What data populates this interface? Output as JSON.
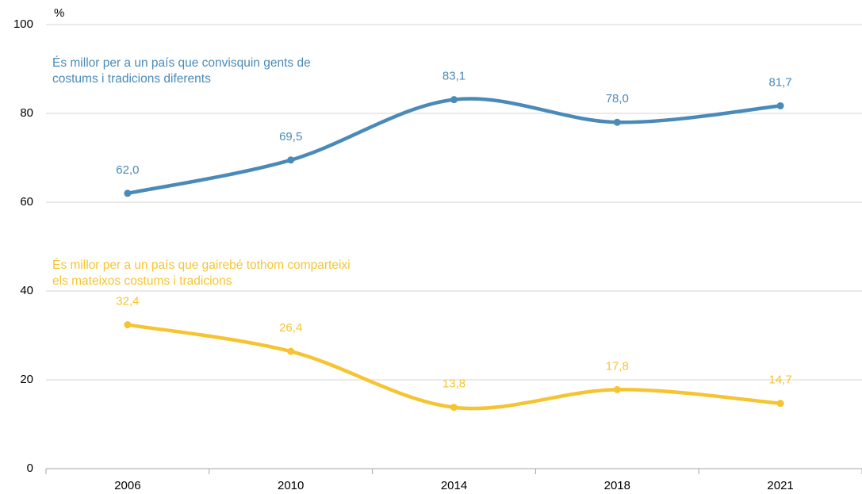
{
  "chart_data": {
    "type": "line",
    "ylabel": "%",
    "categories": [
      "2006",
      "2010",
      "2014",
      "2018",
      "2021"
    ],
    "series": [
      {
        "name": "És millor per a un país que convisquin gents de costums i tradicions diferents",
        "color": "#4a8ab9",
        "values": [
          62.0,
          69.5,
          83.1,
          78.0,
          81.7
        ],
        "value_labels": [
          "62,0",
          "69,5",
          "83,1",
          "78,0",
          "81,7"
        ]
      },
      {
        "name": "És millor per a un país que gairebé tothom comparteixi els mateixos costums i tradicions",
        "color": "#f6c431",
        "values": [
          32.4,
          26.4,
          13.8,
          17.8,
          14.7
        ],
        "value_labels": [
          "32,4",
          "26,4",
          "13,8",
          "17,8",
          "14,7"
        ]
      }
    ],
    "ylim": [
      0,
      100
    ],
    "yticks": [
      0,
      20,
      40,
      60,
      80,
      100
    ],
    "grid": true,
    "smooth": true
  }
}
